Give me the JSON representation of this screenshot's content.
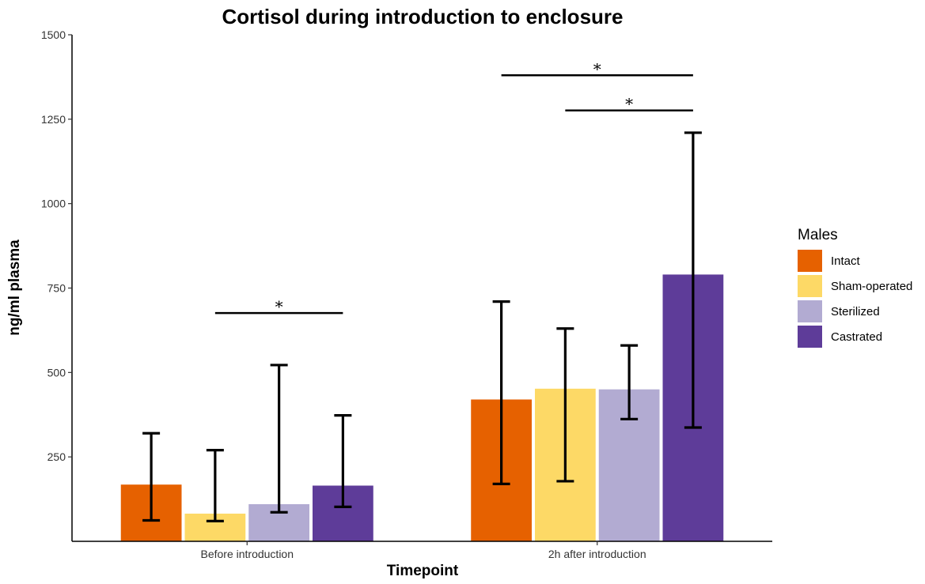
{
  "chart_data": {
    "type": "bar",
    "title": "Cortisol during introduction to enclosure",
    "xlabel": "Timepoint",
    "ylabel": "ng/ml plasma",
    "ylim": [
      0,
      1500
    ],
    "yticks": [
      250,
      500,
      750,
      1000,
      1250,
      1500
    ],
    "categories": [
      "Before introduction",
      "2h after introduction"
    ],
    "legend": {
      "title": "Males",
      "placement": "right"
    },
    "series": [
      {
        "name": "Intact",
        "color": "#E66100",
        "values": [
          168,
          420
        ],
        "err_low": [
          62,
          170
        ],
        "err_high": [
          320,
          710
        ]
      },
      {
        "name": "Sham-operated",
        "color": "#FDD966",
        "values": [
          82,
          452
        ],
        "err_low": [
          60,
          178
        ],
        "err_high": [
          270,
          630
        ]
      },
      {
        "name": "Sterilized",
        "color": "#B2ABD2",
        "values": [
          110,
          450
        ],
        "err_low": [
          86,
          362
        ],
        "err_high": [
          522,
          580
        ]
      },
      {
        "name": "Castrated",
        "color": "#5E3C99",
        "values": [
          165,
          790
        ],
        "err_low": [
          102,
          337
        ],
        "err_high": [
          373,
          1210
        ]
      }
    ],
    "significance": [
      {
        "label": "*",
        "category": 0,
        "from_series": 1,
        "to_series": 3,
        "y": 676
      },
      {
        "label": "*",
        "category": 1,
        "from_series": 0,
        "to_series": 3,
        "y": 1380
      },
      {
        "label": "*",
        "category": 1,
        "from_series": 1,
        "to_series": 3,
        "y": 1276
      }
    ]
  }
}
